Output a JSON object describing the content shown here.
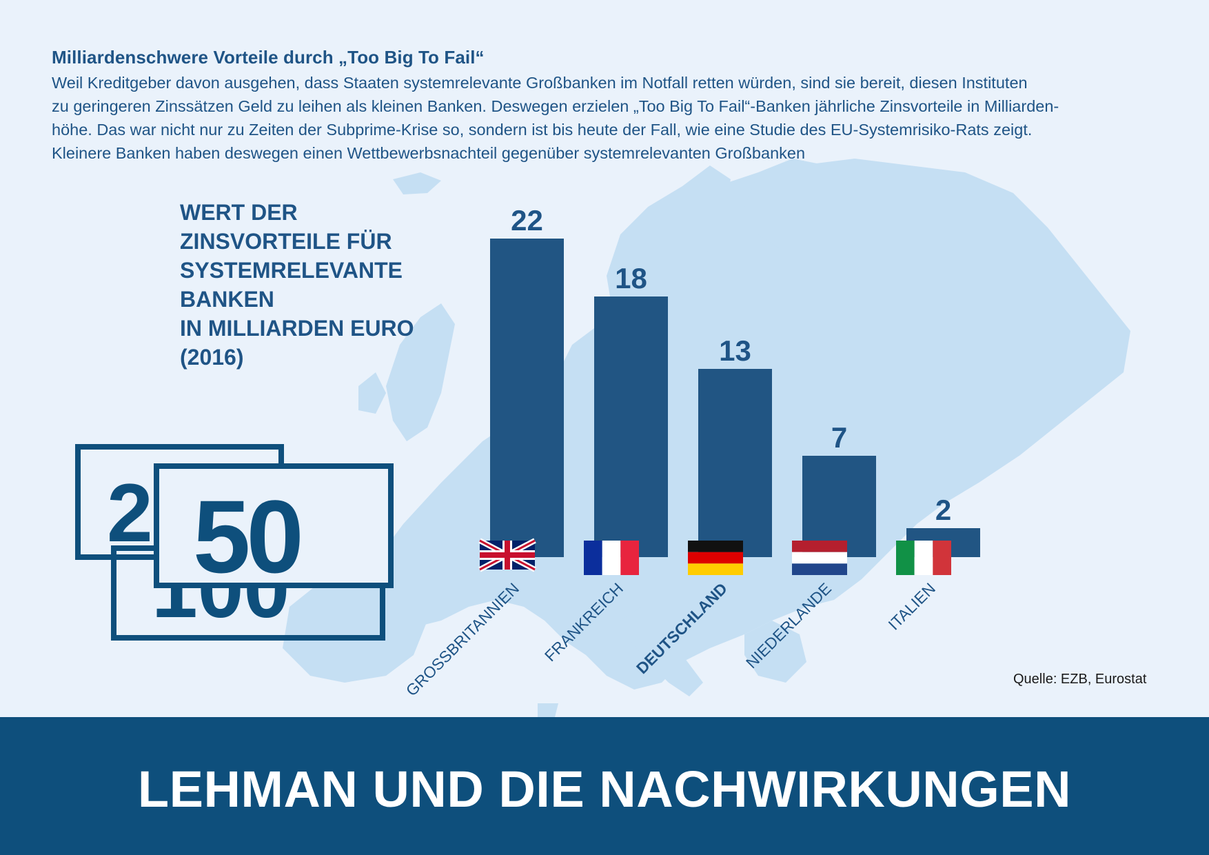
{
  "intro": {
    "heading": "Milliardenschwere Vorteile durch „Too Big To Fail“",
    "lines": [
      "Weil Kreditgeber davon ausgehen, dass Staaten systemrelevante Großbanken im Notfall retten würden, sind sie bereit, diesen Instituten",
      "zu geringeren Zinssätzen Geld zu leihen als kleinen Banken. Deswegen erzielen „Too Big To Fail“-Banken jährliche Zinsvorteile in Milliarden-",
      "höhe. Das war nicht nur zu Zeiten der Subprime-Krise so, sondern ist bis heute der Fall, wie eine Studie des EU-Systemrisiko-Rats zeigt.",
      "Kleinere Banken haben deswegen einen Wettbewerbsnachteil gegenüber systemrelevanten Großbanken"
    ]
  },
  "chart_data": {
    "type": "bar",
    "title_lines": [
      "WERT DER",
      "ZINSVORTEILE FÜR",
      "SYSTEMRELEVANTE",
      "BANKEN",
      "IN MILLIARDEN EURO",
      "(2016)"
    ],
    "categories": [
      "GROSSBRITANNIEN",
      "FRANKREICH",
      "DEUTSCHLAND",
      "NIEDERLANDE",
      "ITALIEN"
    ],
    "values": [
      22,
      18,
      13,
      7,
      2
    ],
    "data_labels": [
      "22",
      "18",
      "13",
      "7",
      "2"
    ],
    "highlight_category": "DEUTSCHLAND",
    "ylim": [
      0,
      22
    ],
    "grid": false,
    "bar_color": "#215583",
    "flags": [
      "uk-flag-icon",
      "france-flag-icon",
      "germany-flag-icon",
      "netherlands-flag-icon",
      "italy-flag-icon"
    ]
  },
  "banknotes": {
    "icon": "banknotes-icon",
    "numbers": [
      "20",
      "50",
      "100"
    ]
  },
  "source": "Quelle: EZB, Eurostat",
  "footer": {
    "title": "LEHMAN UND DIE NACHWIRKUNGEN"
  },
  "colors": {
    "background": "#eaf2fb",
    "map": "#c5dff3",
    "accent": "#1f5486",
    "footer": "#0e4f7c"
  }
}
